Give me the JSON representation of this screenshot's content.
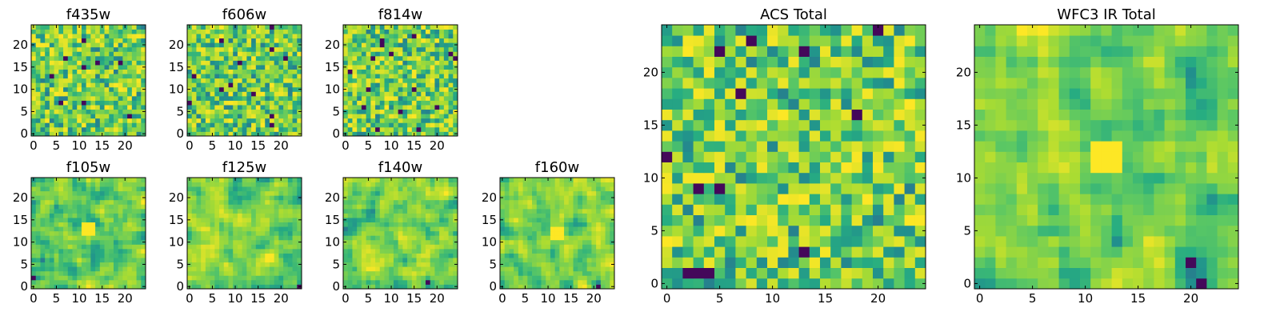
{
  "chart_data": [
    {
      "type": "heatmap",
      "title": "f435w",
      "grid_size": 25,
      "seed": 11,
      "smooth": 0,
      "hot": [],
      "x_ticks": [
        0,
        5,
        10,
        15,
        20
      ],
      "y_ticks": [
        0,
        5,
        10,
        15,
        20
      ],
      "xlim": [
        0,
        24
      ],
      "ylim": [
        0,
        24
      ],
      "colormap": "viridis"
    },
    {
      "type": "heatmap",
      "title": "f606w",
      "grid_size": 25,
      "seed": 23,
      "smooth": 0,
      "hot": [],
      "x_ticks": [
        0,
        5,
        10,
        15,
        20
      ],
      "y_ticks": [
        0,
        5,
        10,
        15,
        20
      ],
      "xlim": [
        0,
        24
      ],
      "ylim": [
        0,
        24
      ],
      "colormap": "viridis"
    },
    {
      "type": "heatmap",
      "title": "f814w",
      "grid_size": 25,
      "seed": 37,
      "smooth": 0,
      "hot": [],
      "x_ticks": [
        0,
        5,
        10,
        15,
        20
      ],
      "y_ticks": [
        0,
        5,
        10,
        15,
        20
      ],
      "xlim": [
        0,
        24
      ],
      "ylim": [
        0,
        24
      ],
      "colormap": "viridis"
    },
    {
      "type": "heatmap",
      "title": "f105w",
      "grid_size": 25,
      "seed": 41,
      "smooth": 1,
      "hot": [
        [
          12,
          13
        ]
      ],
      "x_ticks": [
        0,
        5,
        10,
        15,
        20
      ],
      "y_ticks": [
        0,
        5,
        10,
        15,
        20
      ],
      "xlim": [
        0,
        24
      ],
      "ylim": [
        0,
        24
      ],
      "colormap": "viridis"
    },
    {
      "type": "heatmap",
      "title": "f125w",
      "grid_size": 25,
      "seed": 53,
      "smooth": 1,
      "hot": [],
      "x_ticks": [
        0,
        5,
        10,
        15,
        20
      ],
      "y_ticks": [
        0,
        5,
        10,
        15,
        20
      ],
      "xlim": [
        0,
        24
      ],
      "ylim": [
        0,
        24
      ],
      "colormap": "viridis"
    },
    {
      "type": "heatmap",
      "title": "f140w",
      "grid_size": 25,
      "seed": 67,
      "smooth": 1,
      "hot": [],
      "x_ticks": [
        0,
        5,
        10,
        15,
        20
      ],
      "y_ticks": [
        0,
        5,
        10,
        15,
        20
      ],
      "xlim": [
        0,
        24
      ],
      "ylim": [
        0,
        24
      ],
      "colormap": "viridis"
    },
    {
      "type": "heatmap",
      "title": "f160w",
      "grid_size": 25,
      "seed": 79,
      "smooth": 1,
      "hot": [
        [
          12,
          12
        ]
      ],
      "x_ticks": [
        0,
        5,
        10,
        15,
        20
      ],
      "y_ticks": [
        0,
        5,
        10,
        15,
        20
      ],
      "xlim": [
        0,
        24
      ],
      "ylim": [
        0,
        24
      ],
      "colormap": "viridis"
    },
    {
      "type": "heatmap",
      "title": "ACS Total",
      "grid_size": 25,
      "seed": 97,
      "smooth": 0,
      "hot": [],
      "x_ticks": [
        0,
        5,
        10,
        15,
        20
      ],
      "y_ticks": [
        0,
        5,
        10,
        15,
        20
      ],
      "xlim": [
        0,
        24
      ],
      "ylim": [
        0,
        24
      ],
      "colormap": "viridis"
    },
    {
      "type": "heatmap",
      "title": "WFC3 IR Total",
      "grid_size": 25,
      "seed": 131,
      "smooth": 1,
      "hot": [
        [
          12,
          12
        ]
      ],
      "x_ticks": [
        0,
        5,
        10,
        15,
        20
      ],
      "y_ticks": [
        0,
        5,
        10,
        15,
        20
      ],
      "xlim": [
        0,
        24
      ],
      "ylim": [
        0,
        24
      ],
      "colormap": "viridis"
    }
  ]
}
